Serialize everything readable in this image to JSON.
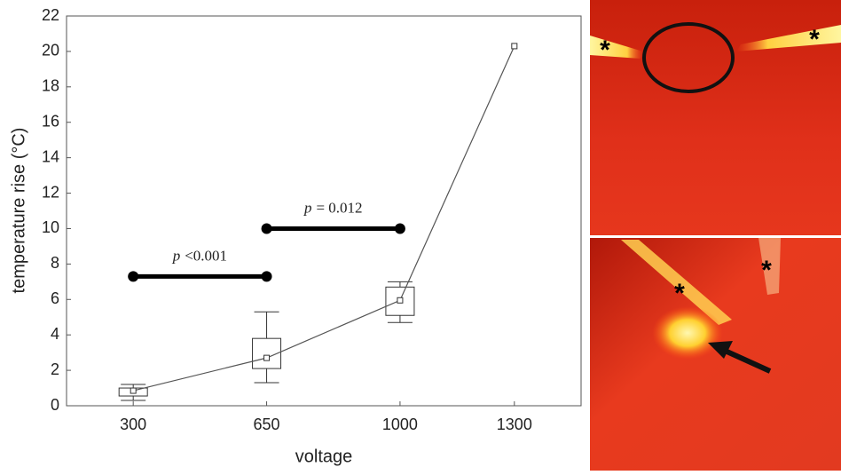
{
  "chart_data": {
    "type": "box_line",
    "x_label": "voltage",
    "y_label": "temperature rise (°C)",
    "x": [
      300,
      650,
      1000,
      1300
    ],
    "values": [
      0.85,
      2.7,
      5.95,
      20.3
    ],
    "whisker_low": [
      0.3,
      1.3,
      4.7,
      null
    ],
    "q1": [
      0.55,
      2.1,
      5.1,
      null
    ],
    "q3": [
      1.0,
      3.8,
      6.7,
      null
    ],
    "whisker_high": [
      1.2,
      5.3,
      7.0,
      null
    ],
    "xlim": [
      125,
      1475
    ],
    "xticks": [
      300,
      650,
      1000,
      1300
    ],
    "ylim": [
      0,
      22
    ],
    "yticks": [
      0,
      2,
      4,
      6,
      8,
      10,
      12,
      14,
      16,
      18,
      20,
      22
    ],
    "significance": [
      {
        "x": [
          300,
          650
        ],
        "y": 7.3,
        "symbol": "p",
        "text": "<0.001"
      },
      {
        "x": [
          650,
          1000
        ],
        "y": 10,
        "symbol": "p",
        "text": "= 0.012"
      }
    ]
  },
  "images": [
    {
      "markers": [
        "*",
        "*"
      ]
    },
    {
      "markers": [
        "*",
        "*"
      ]
    }
  ]
}
